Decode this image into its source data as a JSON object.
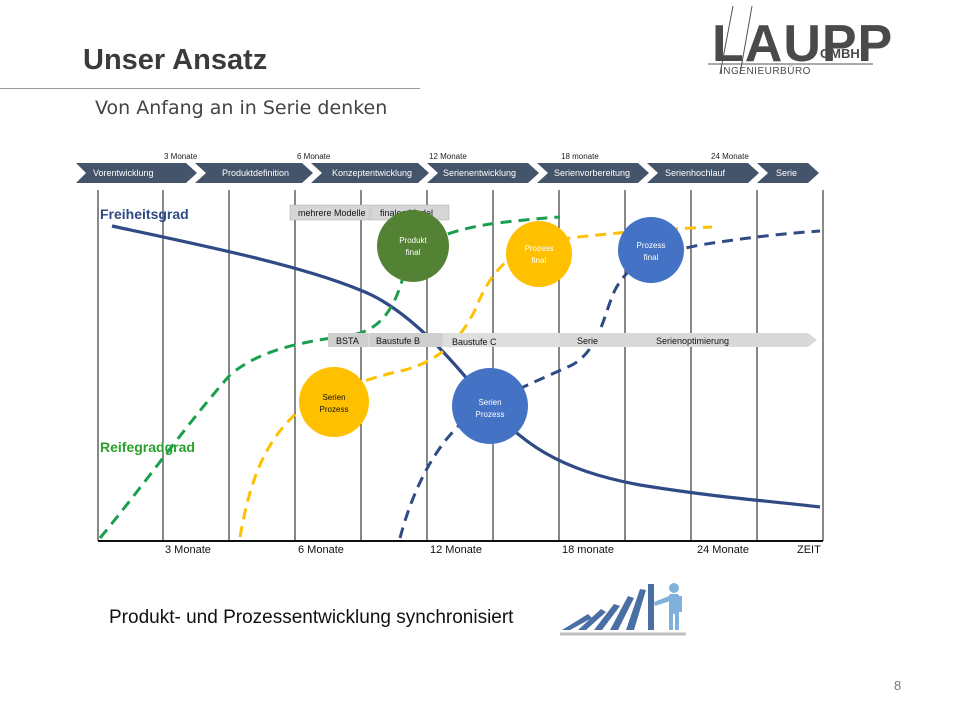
{
  "slide": {
    "title": "Unser Ansatz",
    "subtitle": "Von Anfang an in Serie denken",
    "bottom_text": "Produkt- und Prozessentwicklung synchronisiert",
    "page_number": "8"
  },
  "logo": {
    "main": "LAUPP",
    "suffix": "GMBH",
    "sub": "INGENIEURBÜRO"
  },
  "diagram": {
    "phases": [
      "Vorentwicklung",
      "Produktdefinition",
      "Konzeptentwicklung",
      "Serienentwicklung",
      "Serienvorbereitung",
      "Serienhochlauf",
      "Serie"
    ],
    "top_milestones": [
      "3 Monate",
      "6 Monate",
      "12 Monate",
      "18 monate",
      "24 Monate"
    ],
    "bottom_axis": [
      "3 Monate",
      "6 Monate",
      "12 Monate",
      "18 monate",
      "24 Monate",
      "ZEIT"
    ],
    "label_freiheitsgrad": "Freiheitsgrad",
    "label_reifegrad": "Reifegradgrad",
    "model_tags": [
      "mehrere Modelle",
      "finales Model"
    ],
    "build_stages": [
      "BSTA",
      "Baustufe B",
      "Baustufe C",
      "Serie",
      "Serienoptimierung"
    ],
    "circles": [
      {
        "line1": "Produkt",
        "line2": "final",
        "color": "#548235"
      },
      {
        "line1": "Prozess",
        "line2": "final",
        "color": "#ffc000"
      },
      {
        "line1": "Prozess",
        "line2": "final",
        "color": "#4472c4"
      },
      {
        "line1": "Serien",
        "line2": "Prozess",
        "color": "#ffc000"
      },
      {
        "line1": "Serien",
        "line2": "Prozess",
        "color": "#4472c4"
      }
    ],
    "colors": {
      "phase_bar": "#44546a",
      "freiheit_line": "#2f4a84",
      "green_dash": "#1a9f4f",
      "yellow_dash": "#ffc000",
      "blue_dash": "#2f4a84",
      "label_green": "#2ca02c"
    }
  }
}
